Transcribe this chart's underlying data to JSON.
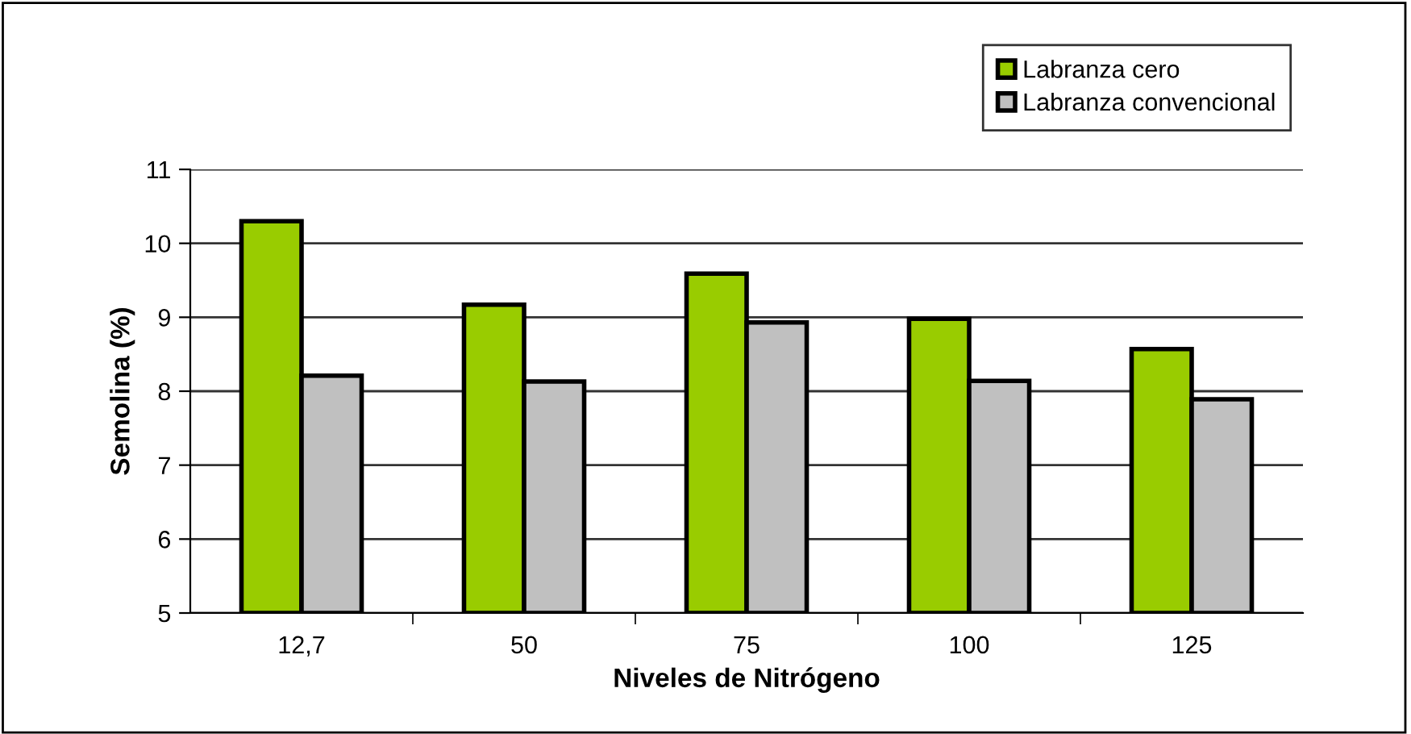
{
  "chart_data": {
    "type": "bar",
    "xlabel": "Niveles de Nitrógeno",
    "ylabel": "Semolina (%)",
    "categories": [
      "12,7",
      "50",
      "75",
      "100",
      "125"
    ],
    "series": [
      {
        "name": "Labranza cero",
        "color": "#99cc00",
        "values": [
          10.3,
          9.17,
          9.59,
          8.98,
          8.57
        ]
      },
      {
        "name": "Labranza convencional",
        "color": "#c0c0c0",
        "values": [
          8.21,
          8.13,
          8.93,
          8.14,
          7.89
        ]
      }
    ],
    "ylim": [
      5,
      11
    ],
    "yticks": [
      5,
      6,
      7,
      8,
      9,
      10,
      11
    ],
    "grid": "y",
    "legend": "top right"
  }
}
